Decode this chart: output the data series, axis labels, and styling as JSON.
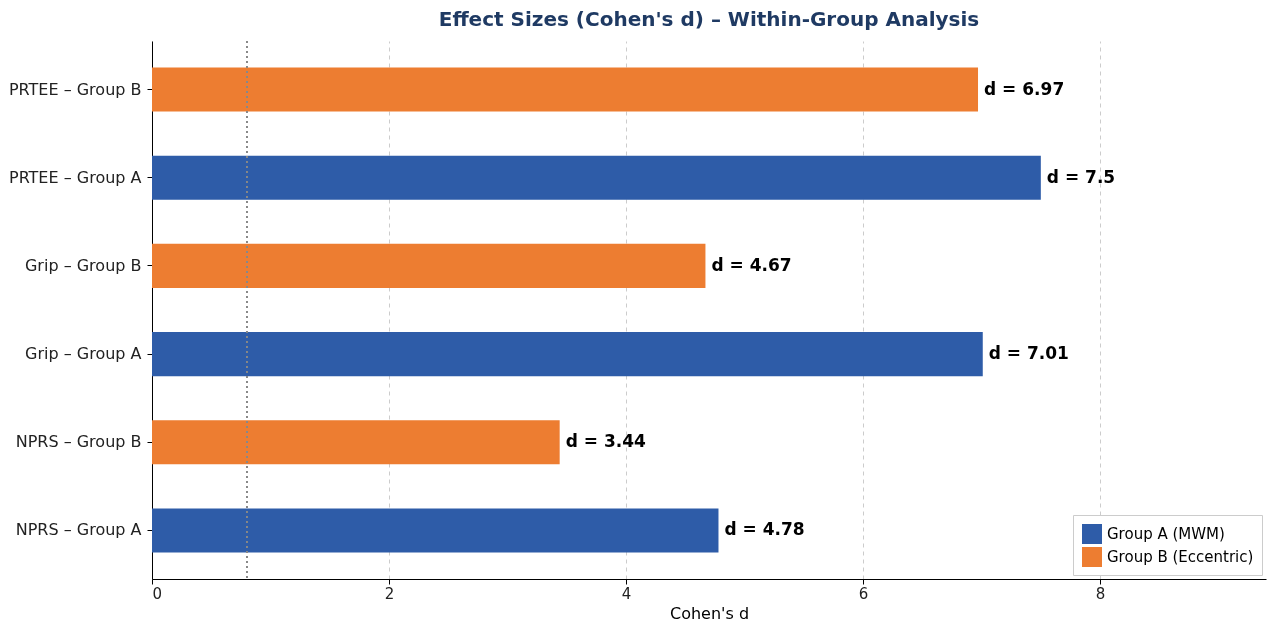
{
  "chart_data": {
    "type": "bar",
    "orientation": "horizontal",
    "title": "Effect Sizes (Cohen's d) – Within-Group Analysis",
    "xlabel": "Cohen's d",
    "categories": [
      "PRTEE – Group B",
      "PRTEE – Group A",
      "Grip – Group B",
      "Grip – Group A",
      "NPRS – Group B",
      "NPRS – Group A"
    ],
    "series": [
      {
        "name": "Group A (MWM)",
        "color": "#2e5ca8",
        "values": [
          null,
          7.5,
          null,
          7.01,
          null,
          4.78
        ],
        "value_labels": [
          null,
          "d = 7.5",
          null,
          "d = 7.01",
          null,
          "d = 4.78"
        ]
      },
      {
        "name": "Group B (Eccentric)",
        "color": "#ed7d31",
        "values": [
          6.97,
          null,
          4.67,
          null,
          3.44,
          null
        ],
        "value_labels": [
          "d = 6.97",
          null,
          "d = 4.67",
          null,
          "d = 3.44",
          null
        ]
      }
    ],
    "xlim": [
      0,
      9.4
    ],
    "xticks": [
      0,
      2,
      4,
      6,
      8
    ],
    "grid": "x",
    "legend": "bottom right",
    "ref_lines": [
      {
        "axis": "x",
        "value": 0.8,
        "line_style": "dotted",
        "color": "#888888"
      }
    ]
  }
}
